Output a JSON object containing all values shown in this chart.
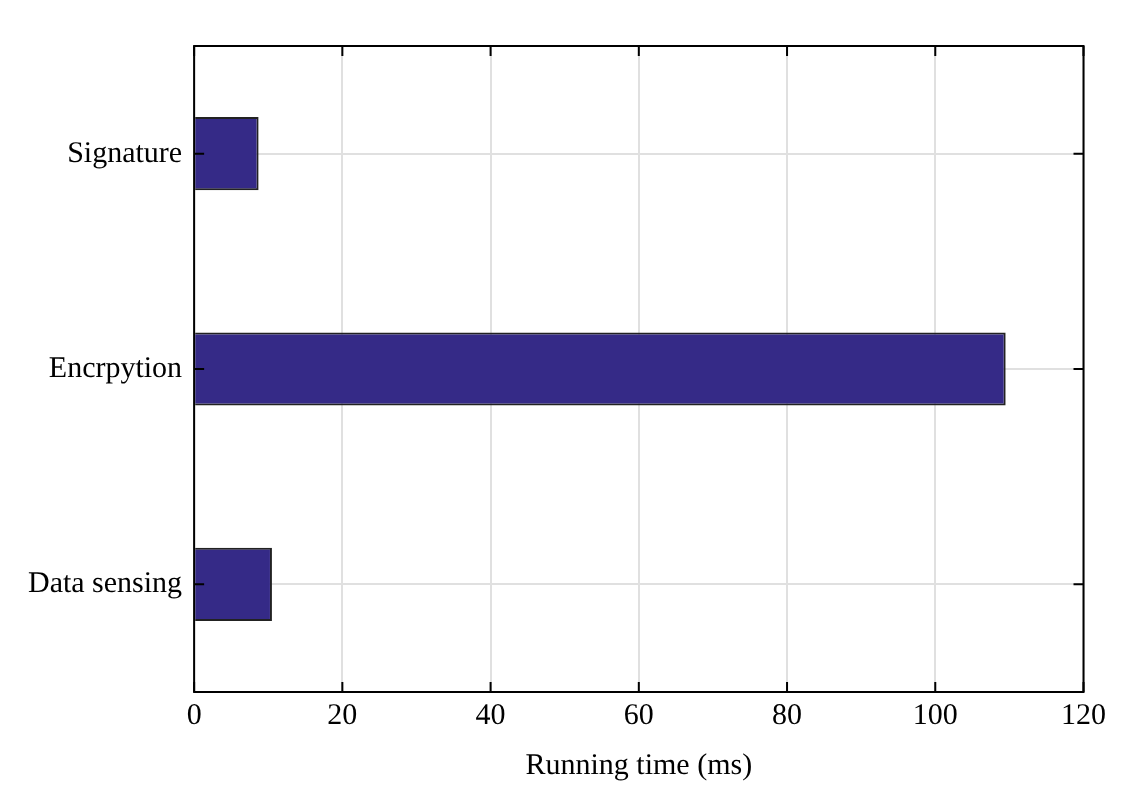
{
  "chart_data": {
    "type": "bar",
    "orientation": "horizontal",
    "xlabel": "Running time (ms)",
    "categories": [
      "Signature",
      "Encrpytion",
      "Data sensing"
    ],
    "values": [
      8.7,
      109.5,
      10.5
    ],
    "color": "#352a87",
    "xlim": [
      0,
      120
    ],
    "xticks": [
      0,
      20,
      40,
      60,
      80,
      100,
      120
    ],
    "grid": true
  }
}
